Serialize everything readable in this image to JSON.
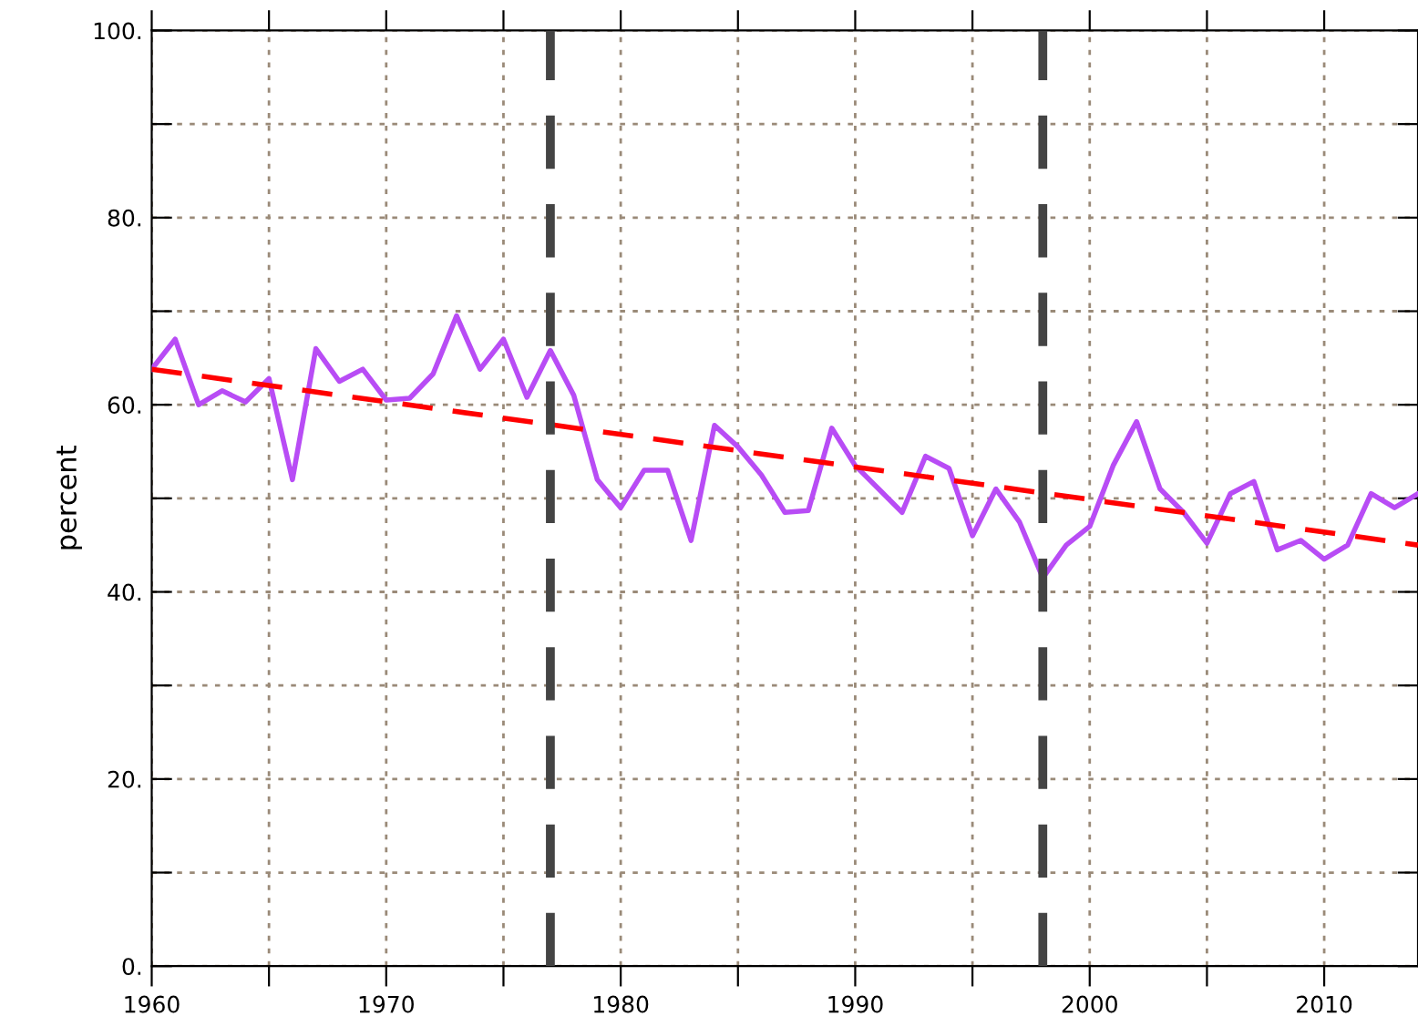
{
  "chart_data": {
    "type": "line",
    "ylabel": "percent",
    "xlim": [
      1960,
      2014
    ],
    "ylim": [
      0,
      100
    ],
    "xticks": [
      {
        "value": 1960,
        "label": "1960"
      },
      {
        "value": 1965,
        "label": null
      },
      {
        "value": 1970,
        "label": "1970"
      },
      {
        "value": 1975,
        "label": null
      },
      {
        "value": 1980,
        "label": "1980"
      },
      {
        "value": 1985,
        "label": null
      },
      {
        "value": 1990,
        "label": "1990"
      },
      {
        "value": 1995,
        "label": null
      },
      {
        "value": 2000,
        "label": "2000"
      },
      {
        "value": 2005,
        "label": null
      },
      {
        "value": 2010,
        "label": "2010"
      }
    ],
    "yticks": [
      {
        "value": 0,
        "label": "0."
      },
      {
        "value": 10,
        "label": null
      },
      {
        "value": 20,
        "label": "20."
      },
      {
        "value": 30,
        "label": null
      },
      {
        "value": 40,
        "label": "40."
      },
      {
        "value": 50,
        "label": null
      },
      {
        "value": 60,
        "label": "60."
      },
      {
        "value": 70,
        "label": null
      },
      {
        "value": 80,
        "label": "80."
      },
      {
        "value": 90,
        "label": null
      },
      {
        "value": 100,
        "label": "100."
      }
    ],
    "grid": true,
    "legend": false,
    "series": [
      {
        "color": "#b84cf5",
        "line_style": "solid",
        "x": [
          1960,
          1961,
          1962,
          1963,
          1964,
          1965,
          1966,
          1967,
          1968,
          1969,
          1970,
          1971,
          1972,
          1973,
          1974,
          1975,
          1976,
          1977,
          1978,
          1979,
          1980,
          1981,
          1982,
          1983,
          1984,
          1985,
          1986,
          1987,
          1988,
          1989,
          1990,
          1991,
          1992,
          1993,
          1994,
          1995,
          1996,
          1997,
          1998,
          1999,
          2000,
          2001,
          2002,
          2003,
          2004,
          2005,
          2006,
          2007,
          2008,
          2009,
          2010,
          2011,
          2012,
          2013,
          2014
        ],
        "values": [
          63.8,
          67,
          60,
          61.5,
          60.3,
          62.8,
          52,
          66,
          62.5,
          63.8,
          60.5,
          60.7,
          63.3,
          69.5,
          63.8,
          67,
          60.8,
          65.8,
          61,
          52,
          49,
          53,
          53,
          45.5,
          57.8,
          55.5,
          52.5,
          48.5,
          48.7,
          57.5,
          53.5,
          51,
          48.5,
          54.5,
          53.2,
          46,
          51,
          47.5,
          41.5,
          45,
          47,
          53.5,
          58.2,
          51,
          48.5,
          45.2,
          50.5,
          51.8,
          44.5,
          45.5,
          43.5,
          45,
          50.5,
          49,
          50.5
        ]
      },
      {
        "color": "#ff0000",
        "line_style": "dashed",
        "x": [
          1960,
          2014
        ],
        "values": [
          63.8,
          45.0
        ]
      }
    ],
    "ref_lines": [
      {
        "axis": "x",
        "value": 1977,
        "color": "#444444",
        "line_style": "dashed"
      },
      {
        "axis": "x",
        "value": 1998,
        "color": "#444444",
        "line_style": "dashed"
      }
    ]
  }
}
